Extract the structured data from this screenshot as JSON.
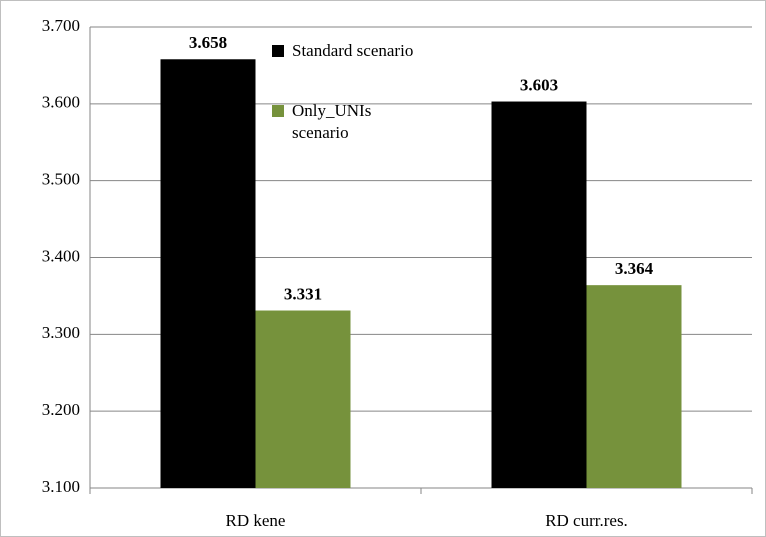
{
  "chart_data": {
    "type": "bar",
    "categories": [
      "RD kene",
      "RD curr.res."
    ],
    "series": [
      {
        "name": "Standard scenario",
        "color": "#000000",
        "values": [
          3.658,
          3.603
        ]
      },
      {
        "name": "Only_UNIs scenario",
        "color": "#76923c",
        "values": [
          3.331,
          3.364
        ]
      }
    ],
    "ylim": [
      3.1,
      3.7
    ],
    "yticks": [
      {
        "value": 3.1,
        "label": "3.100"
      },
      {
        "value": 3.2,
        "label": "3.200"
      },
      {
        "value": 3.3,
        "label": "3.300"
      },
      {
        "value": 3.4,
        "label": "3.400"
      },
      {
        "value": 3.5,
        "label": "3.500"
      },
      {
        "value": 3.6,
        "label": "3.600"
      },
      {
        "value": 3.7,
        "label": "3.700"
      }
    ],
    "grid": true
  }
}
